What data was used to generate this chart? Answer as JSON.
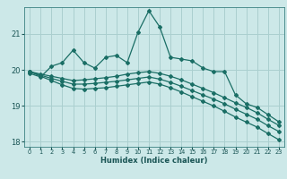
{
  "xlabel": "Humidex (Indice chaleur)",
  "bg_color": "#cce8e8",
  "grid_color": "#aacfcf",
  "line_color": "#1a6e65",
  "xlim": [
    -0.5,
    23.5
  ],
  "ylim": [
    17.85,
    21.75
  ],
  "yticks": [
    18,
    19,
    20,
    21
  ],
  "xticks": [
    0,
    1,
    2,
    3,
    4,
    5,
    6,
    7,
    8,
    9,
    10,
    11,
    12,
    13,
    14,
    15,
    16,
    17,
    18,
    19,
    20,
    21,
    22,
    23
  ],
  "series1": [
    19.9,
    19.8,
    20.1,
    20.2,
    20.55,
    20.2,
    20.05,
    20.35,
    20.4,
    20.2,
    21.05,
    21.65,
    21.2,
    20.35,
    20.3,
    20.25,
    20.05,
    19.95,
    19.95,
    19.3,
    19.05,
    18.95,
    18.75,
    18.55
  ],
  "series2": [
    19.95,
    19.88,
    19.82,
    19.76,
    19.7,
    19.72,
    19.75,
    19.78,
    19.82,
    19.88,
    19.92,
    19.95,
    19.9,
    19.82,
    19.72,
    19.6,
    19.48,
    19.36,
    19.22,
    19.08,
    18.95,
    18.8,
    18.62,
    18.45
  ],
  "series3": [
    19.95,
    19.85,
    19.76,
    19.68,
    19.6,
    19.6,
    19.62,
    19.65,
    19.68,
    19.72,
    19.76,
    19.8,
    19.74,
    19.65,
    19.54,
    19.42,
    19.3,
    19.18,
    19.05,
    18.9,
    18.76,
    18.62,
    18.44,
    18.28
  ],
  "series4": [
    19.95,
    19.82,
    19.7,
    19.58,
    19.48,
    19.46,
    19.48,
    19.5,
    19.54,
    19.58,
    19.62,
    19.66,
    19.6,
    19.5,
    19.38,
    19.25,
    19.12,
    18.99,
    18.84,
    18.68,
    18.54,
    18.4,
    18.22,
    18.05
  ]
}
